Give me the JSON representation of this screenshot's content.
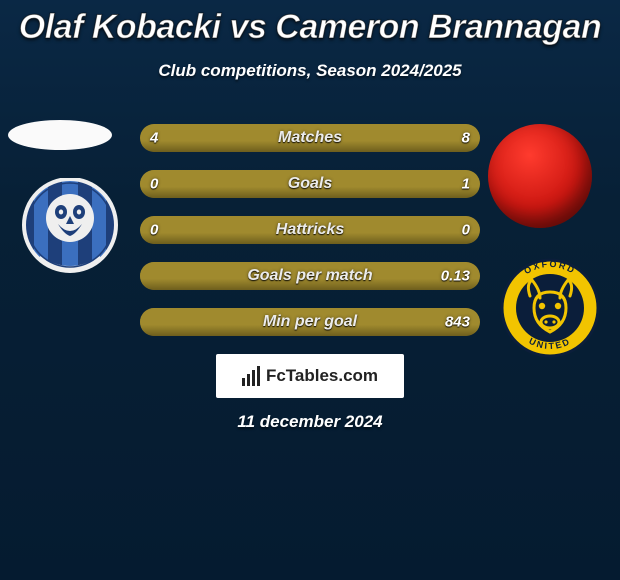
{
  "title": "Olaf Kobacki vs Cameron Brannagan",
  "subtitle": "Club competitions, Season 2024/2025",
  "date": "11 december 2024",
  "logo_text": "FcTables.com",
  "colors": {
    "left_fill": "#a08a2e",
    "right_fill": "#a08a2e",
    "left_shade": "#6e5e1d",
    "right_shade": "#6e5e1d",
    "owl_stripe_dark": "#1e3f7a",
    "owl_stripe_light": "#3b6fbf",
    "owl_white": "#efefef",
    "ox_outer": "#0b1e3a",
    "ox_yellow": "#f2c400"
  },
  "rows": [
    {
      "label": "Matches",
      "left": "4",
      "right": "8",
      "pct_left": 33.3
    },
    {
      "label": "Goals",
      "left": "0",
      "right": "1",
      "pct_left": 0
    },
    {
      "label": "Hattricks",
      "left": "0",
      "right": "0",
      "pct_left": 50
    },
    {
      "label": "Goals per match",
      "left": "",
      "right": "0.13",
      "pct_left": 0
    },
    {
      "label": "Min per goal",
      "left": "",
      "right": "843",
      "pct_left": 0
    }
  ]
}
